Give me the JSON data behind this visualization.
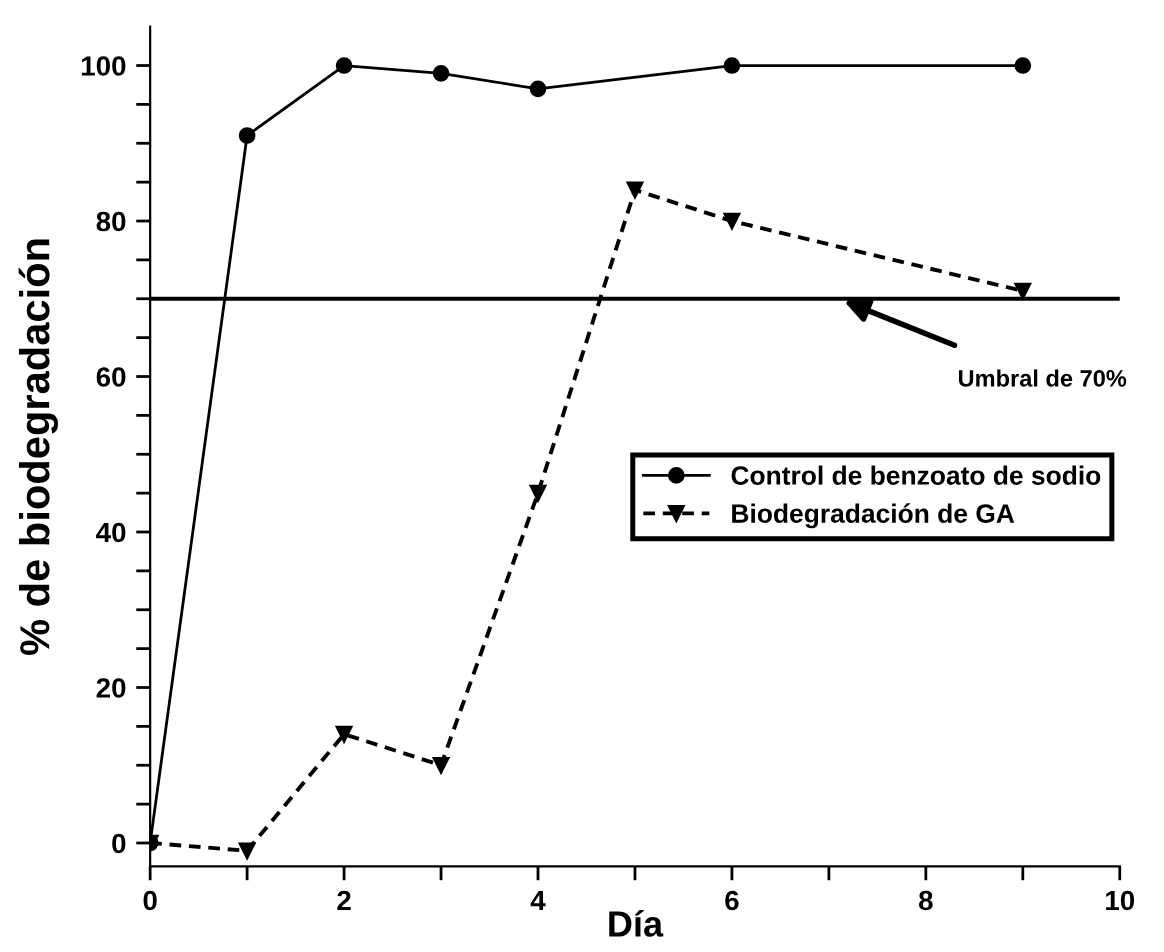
{
  "chart_data": {
    "type": "line",
    "xlabel": "Día",
    "ylabel": "% de biodegradación",
    "series": [
      {
        "name": "Control de benzoato de sodio",
        "color": "#000000",
        "marker": "circle",
        "line_style": "solid",
        "x": [
          0,
          1,
          2,
          3,
          4,
          6,
          9
        ],
        "values": [
          0,
          91,
          100,
          99,
          97,
          100,
          100
        ]
      },
      {
        "name": "Biodegradación de GA",
        "color": "#000000",
        "marker": "triangle",
        "line_style": "dashed",
        "x": [
          0,
          1,
          2,
          3,
          4,
          5,
          6,
          9
        ],
        "values": [
          0,
          -1,
          14,
          10,
          45,
          84,
          80,
          71
        ]
      }
    ],
    "ref_lines": [
      {
        "axis": "y",
        "value": 70,
        "label": "Umbral de 70%",
        "color": "#000000",
        "line_style": "solid"
      }
    ],
    "xlim": [
      0,
      10
    ],
    "ylim": [
      -3,
      105
    ],
    "xticks": [
      0,
      {
        "value": 1,
        "label": null
      },
      2,
      {
        "value": 3,
        "label": null
      },
      4,
      {
        "value": 5,
        "label": null
      },
      6,
      {
        "value": 7,
        "label": null
      },
      8,
      {
        "value": 9,
        "label": null
      },
      10
    ],
    "yticks": [
      0,
      {
        "value": 5,
        "label": null
      },
      {
        "value": 10,
        "label": null
      },
      {
        "value": 15,
        "label": null
      },
      20,
      {
        "value": 25,
        "label": null
      },
      {
        "value": 30,
        "label": null
      },
      {
        "value": 35,
        "label": null
      },
      40,
      {
        "value": 45,
        "label": null
      },
      {
        "value": 50,
        "label": null
      },
      {
        "value": 55,
        "label": null
      },
      60,
      {
        "value": 65,
        "label": null
      },
      {
        "value": 70,
        "label": null
      },
      {
        "value": 75,
        "label": null
      },
      80,
      {
        "value": 85,
        "label": null
      },
      {
        "value": 90,
        "label": null
      },
      {
        "value": 95,
        "label": null
      },
      100
    ],
    "grid": false,
    "legend": "right"
  }
}
